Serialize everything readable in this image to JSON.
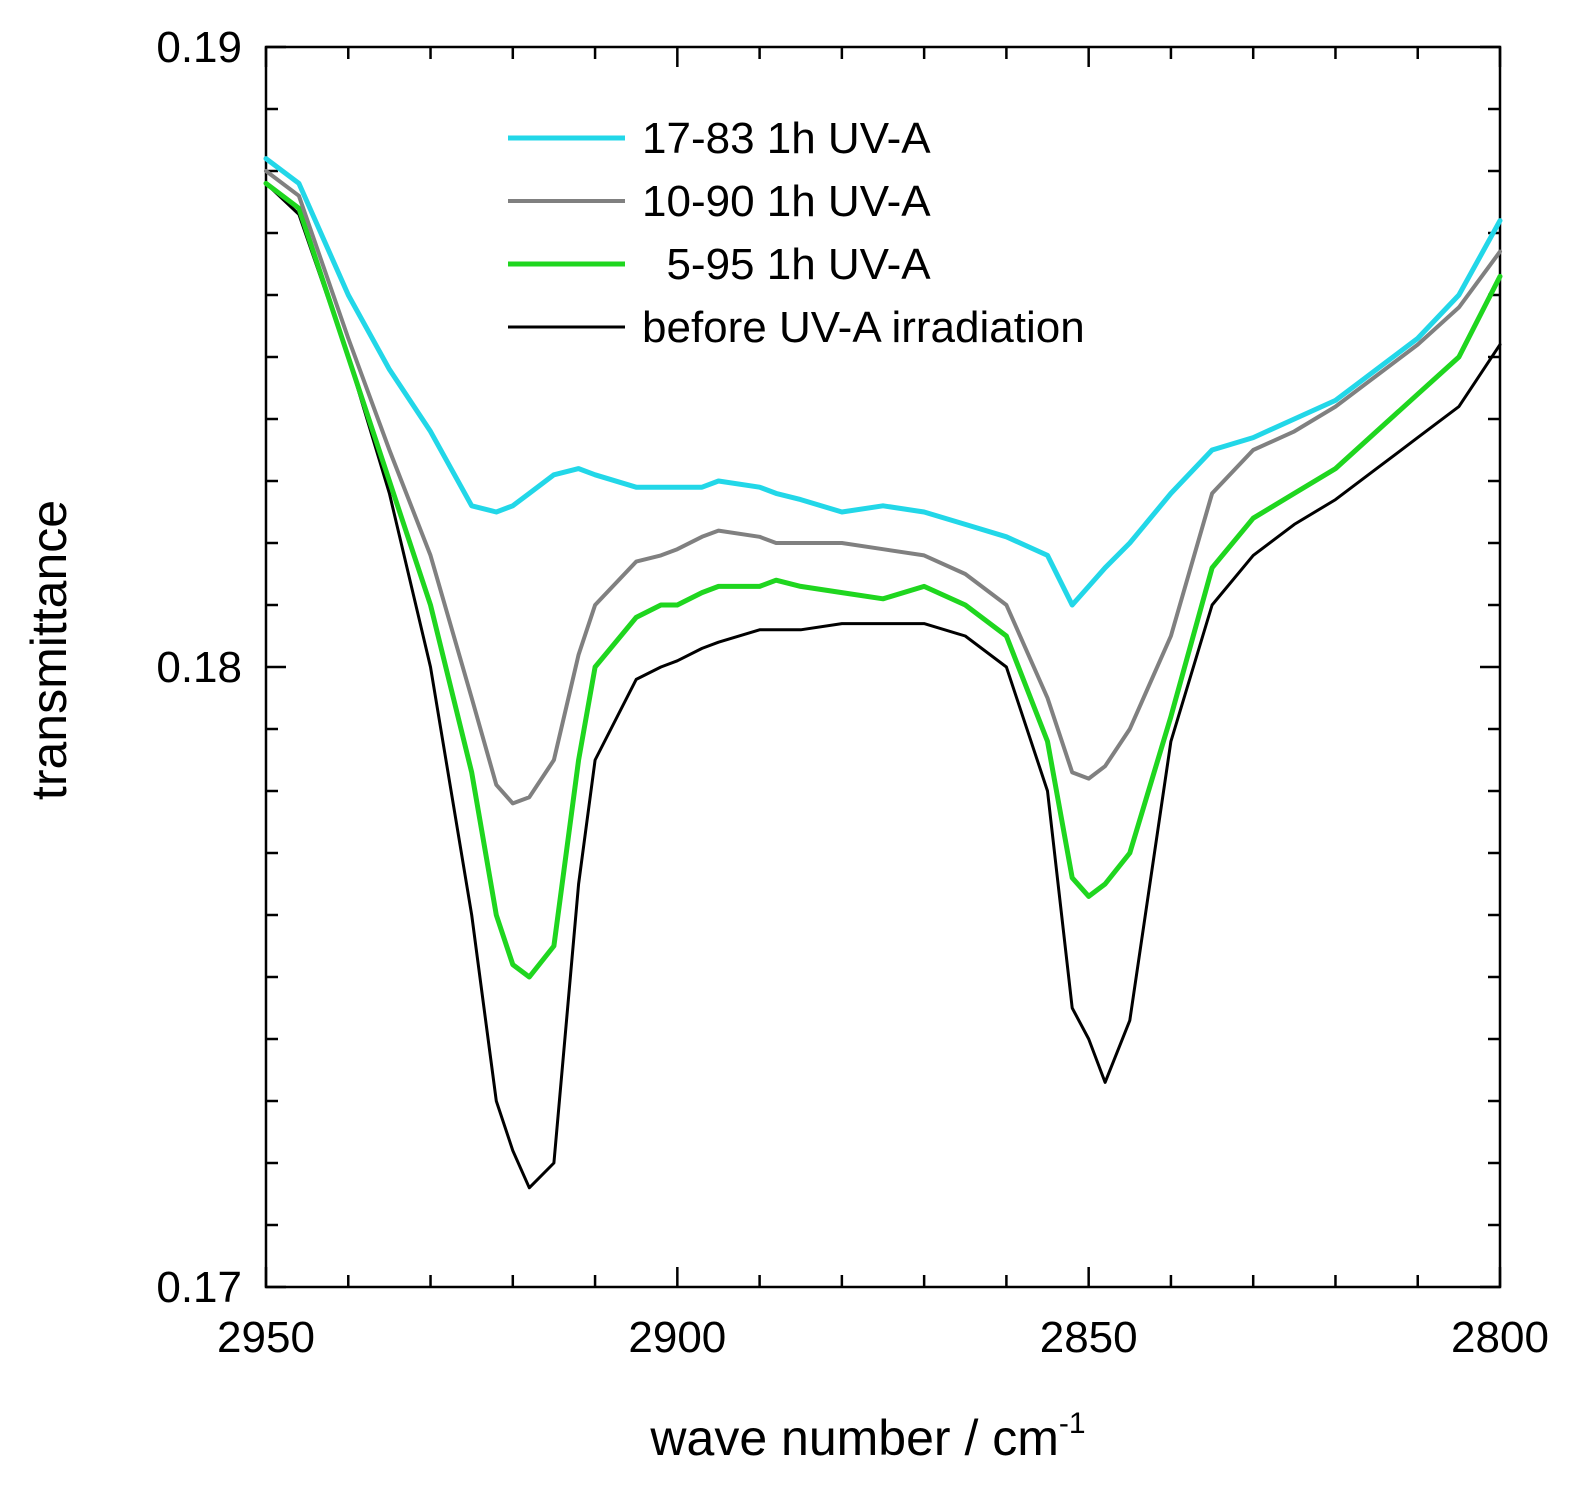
{
  "chart_data": {
    "type": "line",
    "title": "",
    "xlabel": "wave number / cm",
    "xlabel_sup": "-1",
    "ylabel": "transmittance",
    "xlim": [
      2950,
      2800
    ],
    "ylim": [
      0.17,
      0.19
    ],
    "x_reversed": true,
    "grid": false,
    "legend_position": "top-center",
    "x_ticks": [
      2950,
      2900,
      2850,
      2800
    ],
    "x_tick_labels": [
      "2950",
      "2900",
      "2850",
      "2800"
    ],
    "x_minor_step": 10,
    "y_ticks": [
      0.17,
      0.18,
      0.19
    ],
    "y_tick_labels": [
      "0.17",
      "0.18",
      "0.19"
    ],
    "y_minor_step": 0.001,
    "x": [
      2950,
      2946,
      2940,
      2935,
      2930,
      2925,
      2922,
      2920,
      2918,
      2915,
      2912,
      2910,
      2905,
      2902,
      2900,
      2897,
      2895,
      2890,
      2888,
      2885,
      2880,
      2875,
      2870,
      2865,
      2860,
      2855,
      2852,
      2850,
      2848,
      2845,
      2840,
      2835,
      2830,
      2825,
      2820,
      2815,
      2810,
      2805,
      2800
    ],
    "series": [
      {
        "name": "17-83 1h UV-A",
        "color": "#22d7e8",
        "width": 5,
        "values": [
          0.1882,
          0.1878,
          0.186,
          0.1848,
          0.1838,
          0.1826,
          0.1825,
          0.1826,
          0.1828,
          0.1831,
          0.1832,
          0.1831,
          0.1829,
          0.1829,
          0.1829,
          0.1829,
          0.183,
          0.1829,
          0.1828,
          0.1827,
          0.1825,
          0.1826,
          0.1825,
          0.1823,
          0.1821,
          0.1818,
          0.181,
          0.1813,
          0.1816,
          0.182,
          0.1828,
          0.1835,
          0.1837,
          0.184,
          0.1843,
          0.1848,
          0.1853,
          0.186,
          0.1872
        ]
      },
      {
        "name": "10-90 1h UV-A",
        "color": "#808080",
        "width": 4,
        "values": [
          0.188,
          0.1876,
          0.1853,
          0.1835,
          0.1818,
          0.1795,
          0.1781,
          0.1778,
          0.1779,
          0.1785,
          0.1802,
          0.181,
          0.1817,
          0.1818,
          0.1819,
          0.1821,
          0.1822,
          0.1821,
          0.182,
          0.182,
          0.182,
          0.1819,
          0.1818,
          0.1815,
          0.181,
          0.1795,
          0.1783,
          0.1782,
          0.1784,
          0.179,
          0.1805,
          0.1828,
          0.1835,
          0.1838,
          0.1842,
          0.1847,
          0.1852,
          0.1858,
          0.1867
        ]
      },
      {
        "name": "  5-95 1h UV-A",
        "color": "#1fd61f",
        "width": 5,
        "values": [
          0.1878,
          0.1874,
          0.185,
          0.183,
          0.181,
          0.1783,
          0.176,
          0.1752,
          0.175,
          0.1755,
          0.1785,
          0.18,
          0.1808,
          0.181,
          0.181,
          0.1812,
          0.1813,
          0.1813,
          0.1814,
          0.1813,
          0.1812,
          0.1811,
          0.1813,
          0.181,
          0.1805,
          0.1788,
          0.1766,
          0.1763,
          0.1765,
          0.177,
          0.1792,
          0.1816,
          0.1824,
          0.1828,
          0.1832,
          0.1838,
          0.1844,
          0.185,
          0.1863
        ]
      },
      {
        "name": "before UV-A irradiation",
        "color": "#000000",
        "width": 3,
        "values": [
          0.1878,
          0.1873,
          0.185,
          0.1828,
          0.18,
          0.176,
          0.173,
          0.1722,
          0.1716,
          0.172,
          0.1765,
          0.1785,
          0.1798,
          0.18,
          0.1801,
          0.1803,
          0.1804,
          0.1806,
          0.1806,
          0.1806,
          0.1807,
          0.1807,
          0.1807,
          0.1805,
          0.18,
          0.178,
          0.1745,
          0.174,
          0.1733,
          0.1743,
          0.1788,
          0.181,
          0.1818,
          0.1823,
          0.1827,
          0.1832,
          0.1837,
          0.1842,
          0.1852
        ]
      }
    ]
  }
}
